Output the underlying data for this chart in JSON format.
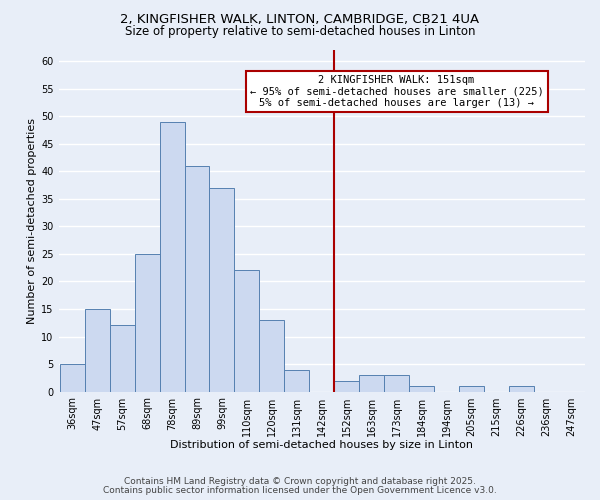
{
  "title1": "2, KINGFISHER WALK, LINTON, CAMBRIDGE, CB21 4UA",
  "title2": "Size of property relative to semi-detached houses in Linton",
  "xlabel": "Distribution of semi-detached houses by size in Linton",
  "ylabel": "Number of semi-detached properties",
  "bar_labels": [
    "36sqm",
    "47sqm",
    "57sqm",
    "68sqm",
    "78sqm",
    "89sqm",
    "99sqm",
    "110sqm",
    "120sqm",
    "131sqm",
    "142sqm",
    "152sqm",
    "163sqm",
    "173sqm",
    "184sqm",
    "194sqm",
    "205sqm",
    "215sqm",
    "226sqm",
    "236sqm",
    "247sqm"
  ],
  "bar_values": [
    5,
    15,
    12,
    25,
    49,
    41,
    37,
    22,
    13,
    4,
    0,
    2,
    3,
    3,
    1,
    0,
    1,
    0,
    1,
    0,
    0
  ],
  "bar_color": "#ccd9f0",
  "bar_edge_color": "#5580b0",
  "vline_color": "#aa0000",
  "annotation_title": "2 KINGFISHER WALK: 151sqm",
  "annotation_line1": "← 95% of semi-detached houses are smaller (225)",
  "annotation_line2": "5% of semi-detached houses are larger (13) →",
  "annotation_box_color": "#ffffff",
  "annotation_box_edge": "#aa0000",
  "ylim": [
    0,
    62
  ],
  "yticks": [
    0,
    5,
    10,
    15,
    20,
    25,
    30,
    35,
    40,
    45,
    50,
    55,
    60
  ],
  "footer1": "Contains HM Land Registry data © Crown copyright and database right 2025.",
  "footer2": "Contains public sector information licensed under the Open Government Licence v3.0.",
  "bg_color": "#e8eef8",
  "grid_color": "#ffffff",
  "title_fontsize": 9.5,
  "subtitle_fontsize": 8.5,
  "axis_label_fontsize": 8,
  "tick_fontsize": 7,
  "annotation_fontsize": 7.5,
  "footer_fontsize": 6.5
}
